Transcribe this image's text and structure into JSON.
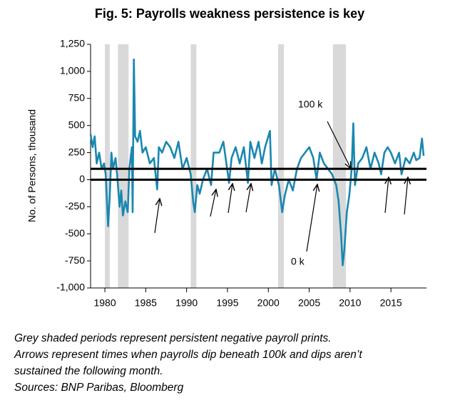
{
  "chart_data": {
    "type": "line",
    "title": "Fig. 5: Payrolls weakness persistence is key",
    "y_label": "No. of Persons, thousand",
    "xlim": [
      1978.25,
      2019.35
    ],
    "xticks": [
      1980,
      1985,
      1990,
      1995,
      2000,
      2005,
      2010,
      2015
    ],
    "ylim": [
      -1000,
      1250
    ],
    "yticks": [
      {
        "value": -1000,
        "label": "-1,000"
      },
      -750,
      -500,
      -250,
      0,
      250,
      500,
      750,
      {
        "value": 1000,
        "label": "1,000"
      },
      {
        "value": 1250,
        "label": "1,250"
      }
    ],
    "reference_lines": [
      0,
      100
    ],
    "shaded_periods": [
      [
        1980.0,
        1980.6
      ],
      [
        1981.6,
        1982.9
      ],
      [
        1990.5,
        1991.2
      ],
      [
        2001.2,
        2001.9
      ],
      [
        2007.9,
        2009.5
      ]
    ],
    "shade_color": "#d9d9d9",
    "annotations": [
      "100 k",
      "0 k"
    ],
    "series": [
      {
        "color": "#1a87b0",
        "x": [
          1978.25,
          1978.5,
          1978.75,
          1979,
          1979.3,
          1979.6,
          1979.9,
          1980.1,
          1980.4,
          1980.6,
          1980.8,
          1981.0,
          1981.3,
          1981.5,
          1981.8,
          1982.0,
          1982.2,
          1982.5,
          1982.8,
          1983.0,
          1983.3,
          1983.4,
          1983.55,
          1983.7,
          1984.0,
          1984.3,
          1984.6,
          1985,
          1985.5,
          1986,
          1986.4,
          1986.6,
          1987,
          1987.5,
          1988,
          1988.5,
          1989,
          1989.5,
          1990,
          1990.5,
          1990.8,
          1991.0,
          1991.3,
          1991.6,
          1992,
          1992.5,
          1993,
          1993.3,
          1994,
          1994.5,
          1995.2,
          1995.5,
          1996,
          1996.5,
          1997,
          1997.5,
          1997.8,
          1998.3,
          1998.8,
          1999.2,
          1999.6,
          2000.2,
          2000.4,
          2000.8,
          2001.3,
          2001.7,
          2002,
          2002.5,
          2003,
          2003.5,
          2004,
          2004.5,
          2005,
          2005.5,
          2005.9,
          2006.3,
          2006.8,
          2007.3,
          2007.8,
          2008.3,
          2008.6,
          2008.9,
          2009.1,
          2009.3,
          2009.6,
          2009.9,
          2010.2,
          2010.4,
          2010.6,
          2011,
          2011.5,
          2012,
          2012.5,
          2013,
          2013.5,
          2013.8,
          2014.2,
          2014.6,
          2015,
          2015.5,
          2016,
          2016.3,
          2016.8,
          2017.3,
          2017.8,
          2018.1,
          2018.5,
          2018.8,
          2019
        ],
        "values": [
          420,
          300,
          400,
          150,
          250,
          100,
          150,
          50,
          -430,
          -150,
          250,
          100,
          200,
          50,
          -250,
          -100,
          -330,
          -200,
          -300,
          100,
          300,
          -300,
          1110,
          400,
          350,
          450,
          250,
          300,
          150,
          200,
          -90,
          300,
          250,
          350,
          300,
          200,
          350,
          100,
          200,
          50,
          -200,
          -300,
          -50,
          -130,
          0,
          100,
          -50,
          250,
          250,
          350,
          -30,
          200,
          300,
          150,
          300,
          -30,
          350,
          200,
          350,
          150,
          300,
          450,
          -50,
          100,
          -50,
          -300,
          -150,
          0,
          -100,
          100,
          200,
          250,
          300,
          200,
          0,
          250,
          150,
          100,
          50,
          -50,
          -200,
          -500,
          -790,
          -650,
          -300,
          -150,
          100,
          520,
          -50,
          150,
          200,
          300,
          100,
          250,
          150,
          50,
          250,
          300,
          250,
          150,
          250,
          50,
          200,
          150,
          250,
          180,
          200,
          380,
          220
        ]
      }
    ]
  },
  "notes": [
    "Grey shaded periods represent persistent negative payroll prints.",
    "Arrows represent times when payrolls dip beneath 100k and dips aren’t",
    "sustained the following month.",
    "Sources: BNP Paribas, Bloomberg"
  ]
}
